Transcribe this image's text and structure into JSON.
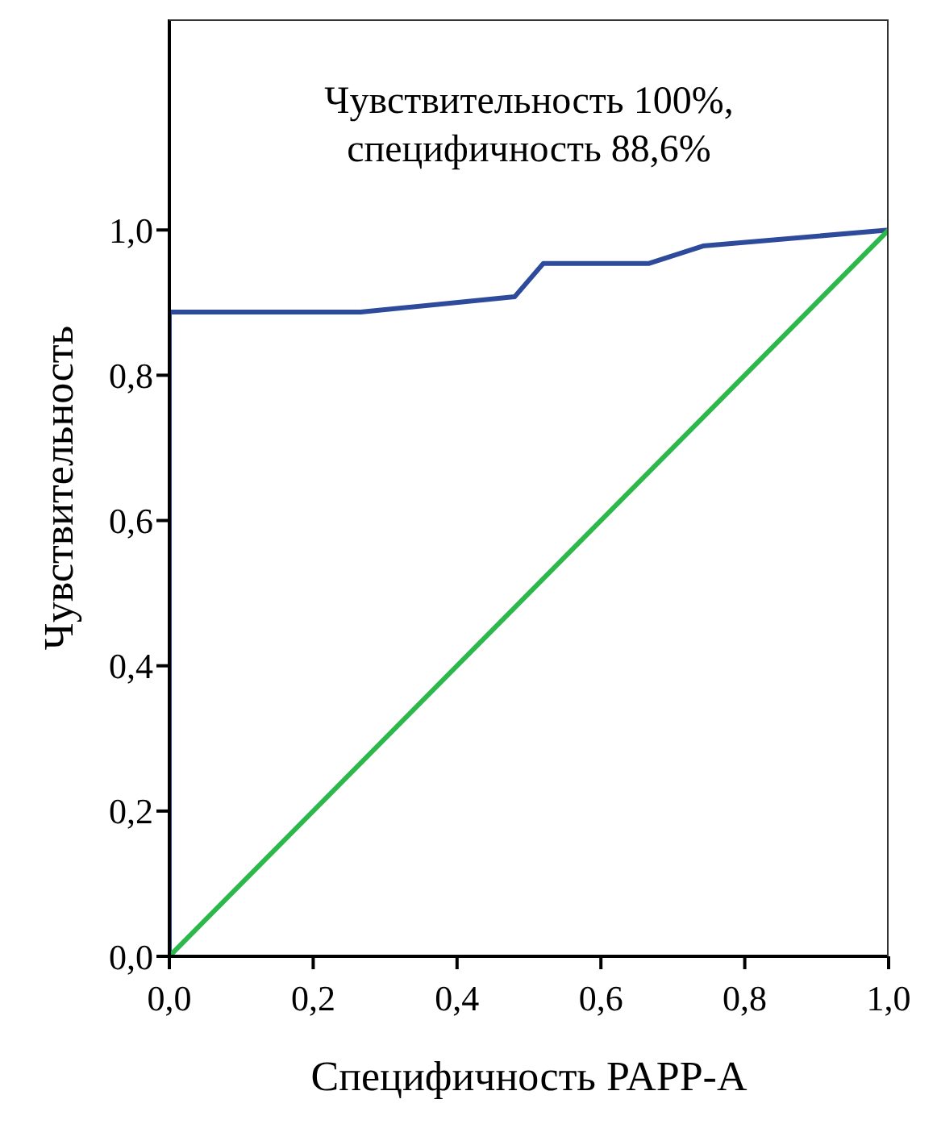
{
  "chart_data": {
    "type": "line",
    "xlabel": "Специфичность PAPP-A",
    "ylabel": "Чувствительность",
    "annotations": [
      "Чувствительность 100%,\nспецифичность 88,6%"
    ],
    "series": [
      {
        "color": "#2e4a9a",
        "x": [
          0,
          0,
          0.266,
          0.48,
          0.52,
          0.667,
          0.742,
          1
        ],
        "values": [
          0,
          0.887,
          0.887,
          0.908,
          0.954,
          0.954,
          0.978,
          1
        ]
      },
      {
        "color": "#2cb84a",
        "x": [
          0,
          1
        ],
        "values": [
          0,
          1
        ]
      }
    ],
    "xlim": [
      0,
      1
    ],
    "ylim": [
      0,
      1.29
    ],
    "xticks": [
      {
        "value": 0,
        "label": "0,0"
      },
      {
        "value": 0.2,
        "label": "0,2"
      },
      {
        "value": 0.4,
        "label": "0,4"
      },
      {
        "value": 0.6,
        "label": "0,6"
      },
      {
        "value": 0.8,
        "label": "0,8"
      },
      {
        "value": 1,
        "label": "1,0"
      }
    ],
    "yticks": [
      {
        "value": 0,
        "label": "0,0"
      },
      {
        "value": 0.2,
        "label": "0,2"
      },
      {
        "value": 0.4,
        "label": "0,4"
      },
      {
        "value": 0.6,
        "label": "0,6"
      },
      {
        "value": 0.8,
        "label": "0,8"
      },
      {
        "value": 1,
        "label": "1,0"
      }
    ],
    "grid": false,
    "marker": "none",
    "line_style": "solid"
  }
}
